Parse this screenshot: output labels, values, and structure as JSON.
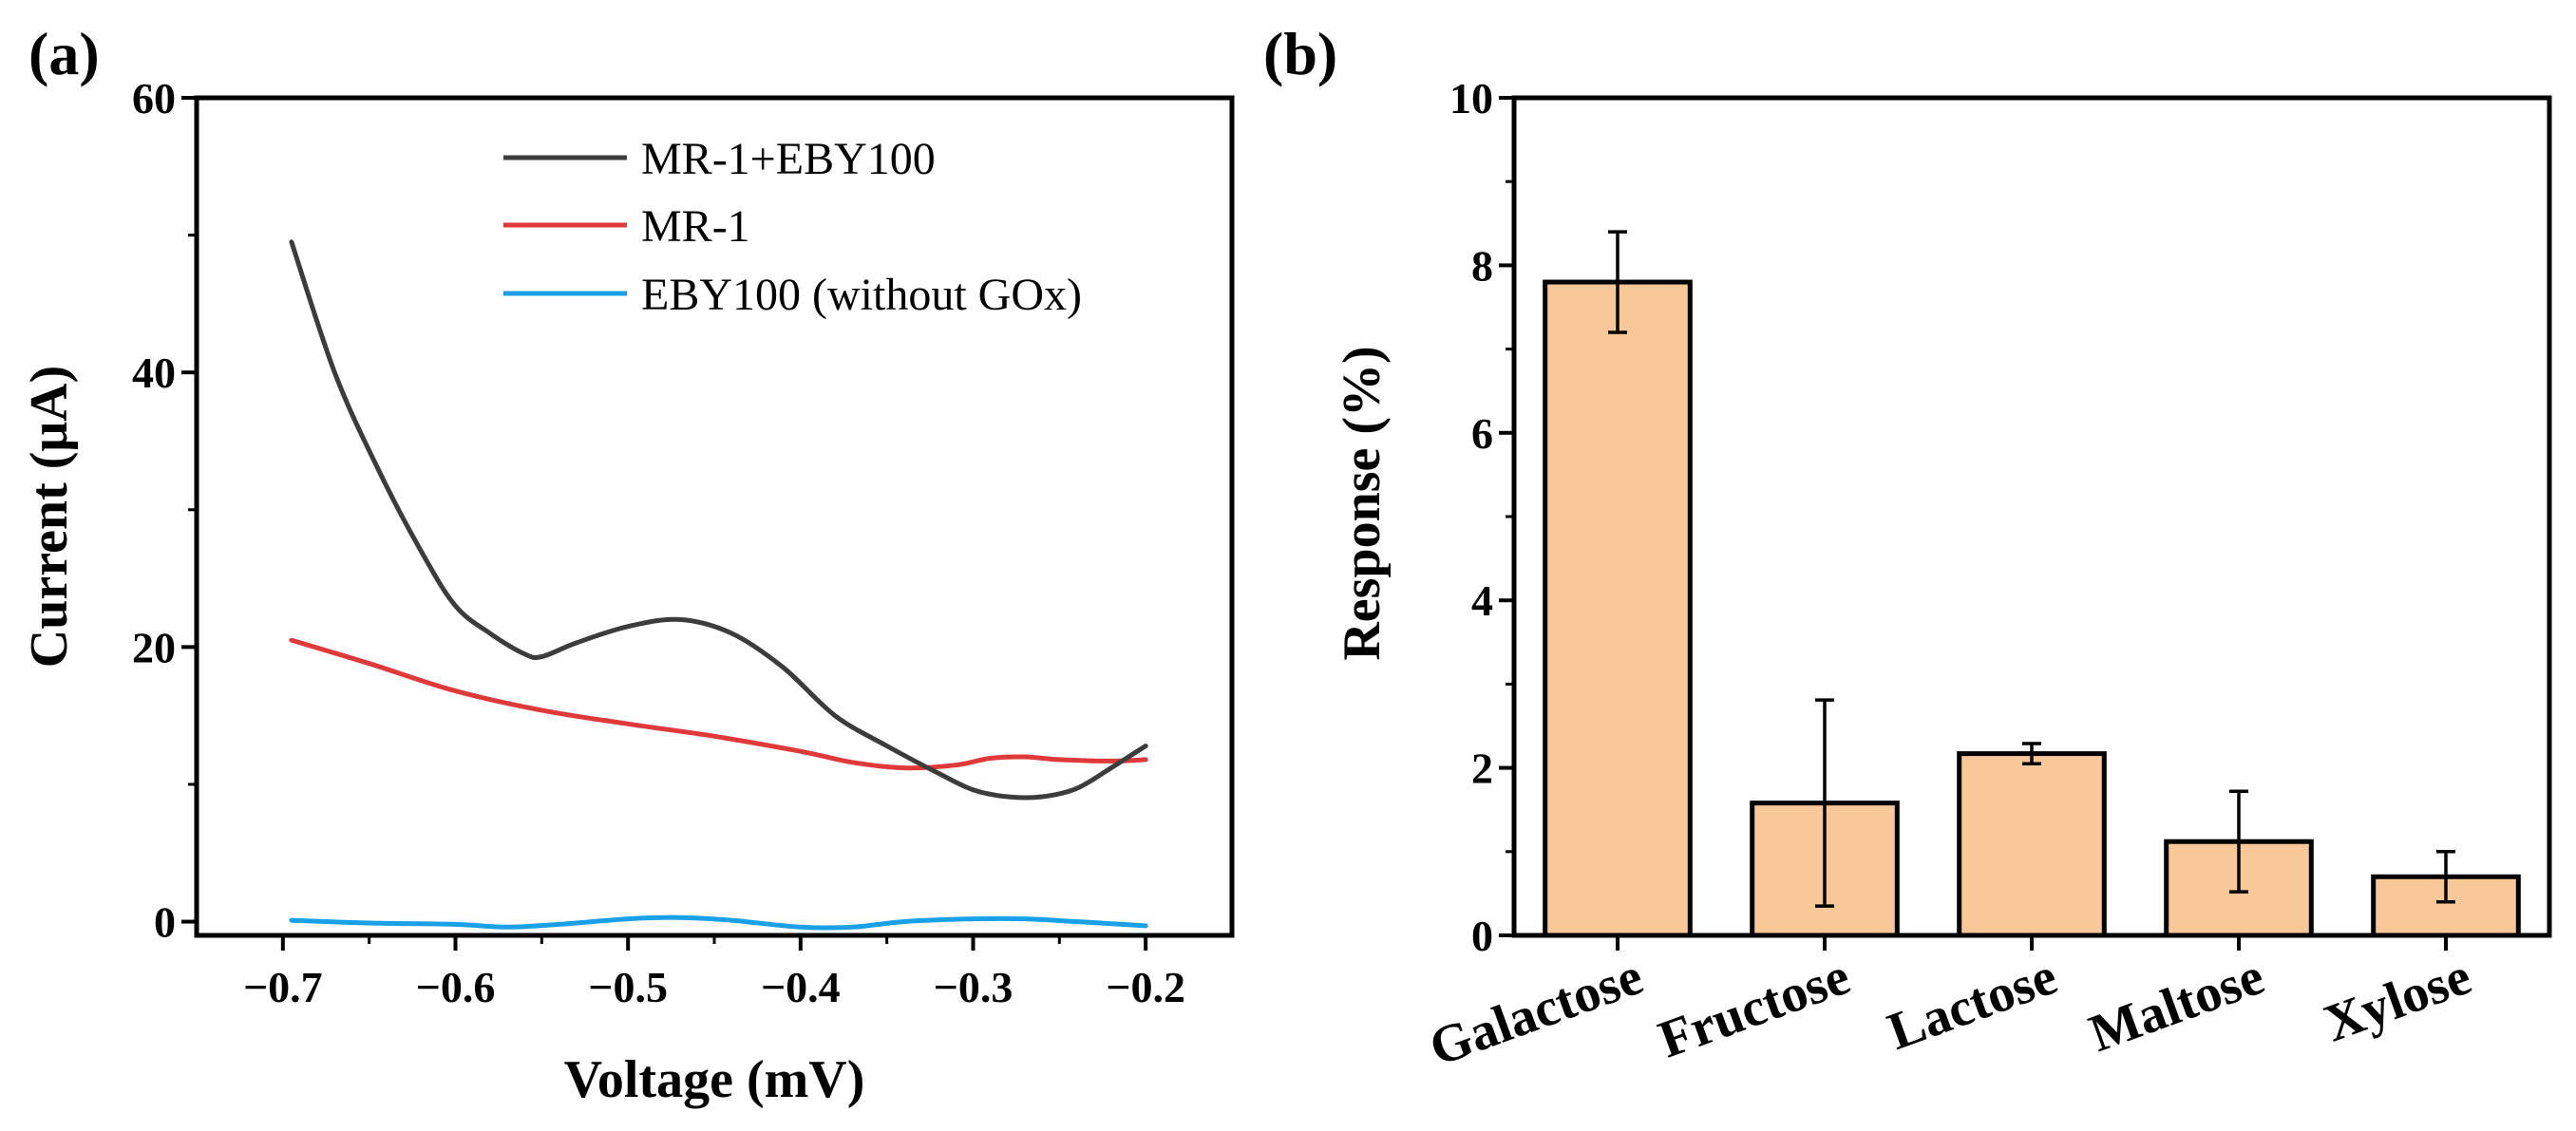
{
  "figure": {
    "label_a": "(a)",
    "label_b": "(b)"
  },
  "colors": {
    "black_series": "#3c3c3c",
    "red_series": "#e0393a",
    "blue_series": "#1aa0e6",
    "bar_fill": "#f9c898",
    "axis": "#000000"
  },
  "chart_data": [
    {
      "type": "line",
      "panel": "a",
      "title": "",
      "xlabel": "Voltage (mV)",
      "ylabel": "Current (μA)",
      "xlim": [
        -0.75,
        -0.15
      ],
      "ylim": [
        -1,
        60
      ],
      "xticks": [
        -0.7,
        -0.6,
        -0.5,
        -0.4,
        -0.3,
        -0.2
      ],
      "xtick_labels": [
        "−0.7",
        "−0.6",
        "−0.5",
        "−0.4",
        "−0.3",
        "−0.2"
      ],
      "yticks": [
        0,
        20,
        40,
        60
      ],
      "ytick_labels": [
        "0",
        "20",
        "40",
        "60"
      ],
      "legend_position": "top-right",
      "series": [
        {
          "name": "MR-1+EBY100",
          "color": "#3c3c3c",
          "x": [
            -0.695,
            -0.67,
            -0.645,
            -0.62,
            -0.6,
            -0.58,
            -0.56,
            -0.55,
            -0.53,
            -0.5,
            -0.47,
            -0.44,
            -0.41,
            -0.38,
            -0.35,
            -0.32,
            -0.3,
            -0.28,
            -0.26,
            -0.24,
            -0.22,
            -0.2
          ],
          "y": [
            49.5,
            40,
            33,
            27,
            23,
            21,
            19.5,
            19.3,
            20.3,
            21.5,
            22,
            21,
            18.5,
            15,
            12.8,
            10.8,
            9.6,
            9.1,
            9.1,
            9.7,
            11.2,
            12.8
          ]
        },
        {
          "name": "MR-1",
          "color": "#e0393a",
          "x": [
            -0.695,
            -0.65,
            -0.6,
            -0.55,
            -0.5,
            -0.45,
            -0.4,
            -0.37,
            -0.34,
            -0.31,
            -0.29,
            -0.27,
            -0.25,
            -0.22,
            -0.2
          ],
          "y": [
            20.5,
            18.8,
            16.8,
            15.4,
            14.4,
            13.5,
            12.4,
            11.6,
            11.2,
            11.4,
            11.9,
            12,
            11.8,
            11.7,
            11.8
          ]
        },
        {
          "name": "EBY100 (without GOx)",
          "color": "#1aa0e6",
          "x": [
            -0.695,
            -0.65,
            -0.6,
            -0.57,
            -0.54,
            -0.5,
            -0.47,
            -0.44,
            -0.4,
            -0.37,
            -0.34,
            -0.3,
            -0.27,
            -0.24,
            -0.2
          ],
          "y": [
            0.1,
            -0.1,
            -0.2,
            -0.4,
            -0.2,
            0.2,
            0.3,
            0.1,
            -0.4,
            -0.4,
            0.0,
            0.2,
            0.2,
            0.0,
            -0.3
          ]
        }
      ]
    },
    {
      "type": "bar",
      "panel": "b",
      "title": "",
      "xlabel": "",
      "ylabel": "Response (%)",
      "ylim": [
        0,
        10
      ],
      "yticks": [
        0,
        2,
        4,
        6,
        8,
        10
      ],
      "ytick_labels": [
        "0",
        "2",
        "4",
        "6",
        "8",
        "10"
      ],
      "categories": [
        "Galactose",
        "Fructose",
        "Lactose",
        "Maltose",
        "Xylose"
      ],
      "values": [
        7.8,
        1.58,
        2.17,
        1.12,
        0.7
      ],
      "errors": [
        0.6,
        1.23,
        0.12,
        0.6,
        0.3
      ]
    }
  ]
}
